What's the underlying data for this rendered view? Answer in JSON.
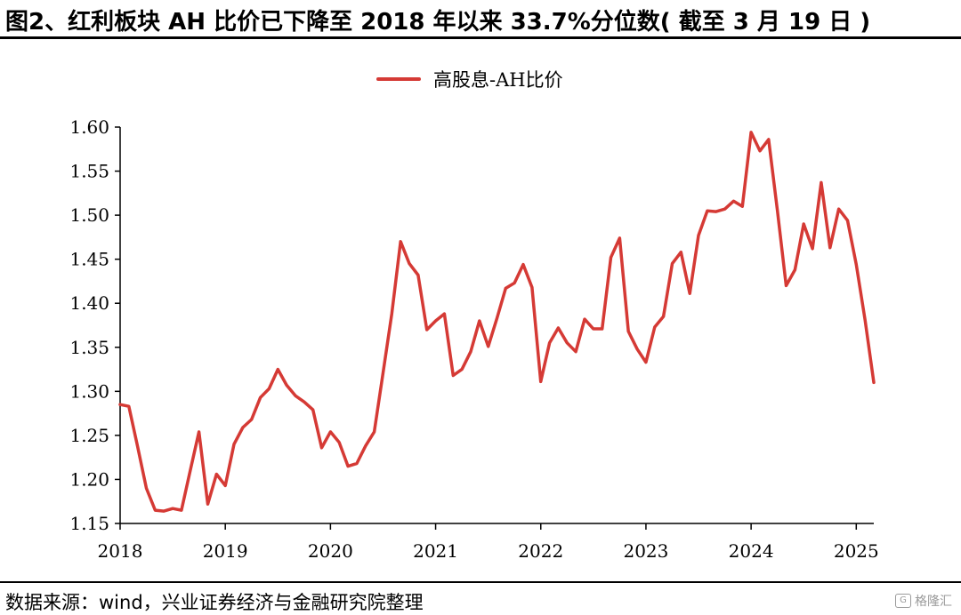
{
  "header": {
    "title": "图2、红利板块 AH 比价已下降至 2018 年以来 33.7%分位数( 截至 3 月 19 日 )"
  },
  "footer": {
    "source": "数据来源：wind，兴业证券经济与金融研究院整理",
    "watermark_text": "格隆汇",
    "watermark_icon": "g-logo-icon"
  },
  "colors": {
    "series": "#d53a35",
    "axis": "#000000"
  },
  "chart_data": {
    "type": "line",
    "title": "",
    "xlabel": "",
    "ylabel": "",
    "ylim": [
      1.15,
      1.6
    ],
    "yticks": [
      "1.60",
      "1.55",
      "1.50",
      "1.45",
      "1.40",
      "1.35",
      "1.30",
      "1.25",
      "1.20",
      "1.15"
    ],
    "xticks": [
      "2018",
      "2019",
      "2020",
      "2021",
      "2022",
      "2023",
      "2024",
      "2025"
    ],
    "xrange": [
      "2018-01",
      "2025-03"
    ],
    "legend_position": "top-center",
    "grid": false,
    "series": [
      {
        "name": "高股息-AH比价",
        "x": [
          "2018-01",
          "2018-02",
          "2018-03",
          "2018-04",
          "2018-05",
          "2018-06",
          "2018-07",
          "2018-08",
          "2018-09",
          "2018-10",
          "2018-11",
          "2018-12",
          "2019-01",
          "2019-02",
          "2019-03",
          "2019-04",
          "2019-05",
          "2019-06",
          "2019-07",
          "2019-08",
          "2019-09",
          "2019-10",
          "2019-11",
          "2019-12",
          "2020-01",
          "2020-02",
          "2020-03",
          "2020-04",
          "2020-05",
          "2020-06",
          "2020-07",
          "2020-08",
          "2020-09",
          "2020-10",
          "2020-11",
          "2020-12",
          "2021-01",
          "2021-02",
          "2021-03",
          "2021-04",
          "2021-05",
          "2021-06",
          "2021-07",
          "2021-08",
          "2021-09",
          "2021-10",
          "2021-11",
          "2021-12",
          "2022-01",
          "2022-02",
          "2022-03",
          "2022-04",
          "2022-05",
          "2022-06",
          "2022-07",
          "2022-08",
          "2022-09",
          "2022-10",
          "2022-11",
          "2022-12",
          "2023-01",
          "2023-02",
          "2023-03",
          "2023-04",
          "2023-05",
          "2023-06",
          "2023-07",
          "2023-08",
          "2023-09",
          "2023-10",
          "2023-11",
          "2023-12",
          "2024-01",
          "2024-02",
          "2024-03",
          "2024-04",
          "2024-05",
          "2024-06",
          "2024-07",
          "2024-08",
          "2024-09",
          "2024-10",
          "2024-11",
          "2024-12",
          "2025-01",
          "2025-02",
          "2025-03"
        ],
        "values": [
          1.285,
          1.283,
          1.237,
          1.19,
          1.165,
          1.164,
          1.167,
          1.165,
          1.21,
          1.254,
          1.172,
          1.206,
          1.193,
          1.24,
          1.259,
          1.268,
          1.293,
          1.303,
          1.325,
          1.307,
          1.295,
          1.288,
          1.279,
          1.236,
          1.254,
          1.242,
          1.215,
          1.218,
          1.238,
          1.254,
          1.321,
          1.388,
          1.47,
          1.445,
          1.432,
          1.37,
          1.38,
          1.388,
          1.318,
          1.325,
          1.345,
          1.38,
          1.351,
          1.383,
          1.417,
          1.423,
          1.444,
          1.418,
          1.311,
          1.355,
          1.372,
          1.355,
          1.345,
          1.382,
          1.371,
          1.371,
          1.452,
          1.474,
          1.368,
          1.348,
          1.333,
          1.373,
          1.385,
          1.445,
          1.458,
          1.411,
          1.477,
          1.505,
          1.504,
          1.507,
          1.516,
          1.51,
          1.594,
          1.573,
          1.586,
          1.505,
          1.42,
          1.438,
          1.49,
          1.462,
          1.537,
          1.463,
          1.507,
          1.494,
          1.444,
          1.381,
          1.31
        ]
      }
    ]
  }
}
